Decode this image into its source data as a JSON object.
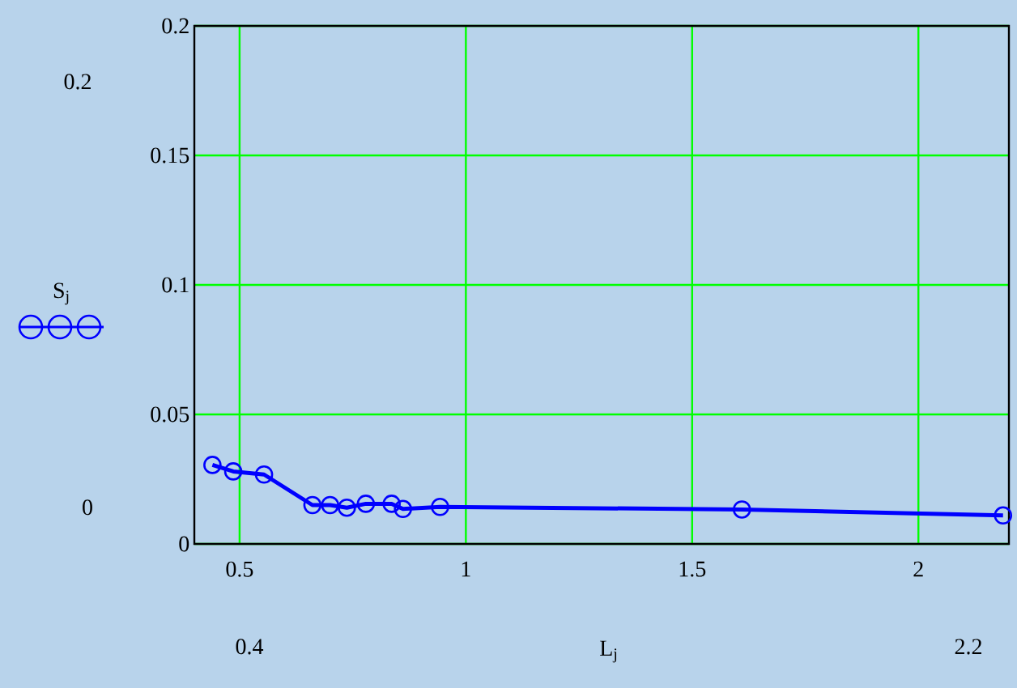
{
  "chart_data": {
    "type": "line",
    "xlabel": "L$_{j}$",
    "ylabel": "S$_{j}$",
    "x": [
      0.44,
      0.486,
      0.554,
      0.661,
      0.7,
      0.737,
      0.779,
      0.836,
      0.861,
      0.943,
      1.61,
      2.187
    ],
    "series": [
      {
        "color": "#0000ff",
        "values": [
          0.0305,
          0.028,
          0.0268,
          0.015,
          0.015,
          0.014,
          0.0155,
          0.0155,
          0.0135,
          0.0143,
          0.0133,
          0.011
        ]
      }
    ],
    "xlim": [
      0.4,
      2.2
    ],
    "ylim": [
      0,
      0.2
    ],
    "xticks": [
      0.5,
      1,
      1.5,
      2
    ],
    "yticks": [
      0,
      0.05,
      0.1,
      0.15,
      0.2
    ],
    "grid": true,
    "marker": "circle",
    "line_style": "solid",
    "annotations": [
      "0.2",
      "0",
      "0.4",
      "2.2"
    ]
  }
}
